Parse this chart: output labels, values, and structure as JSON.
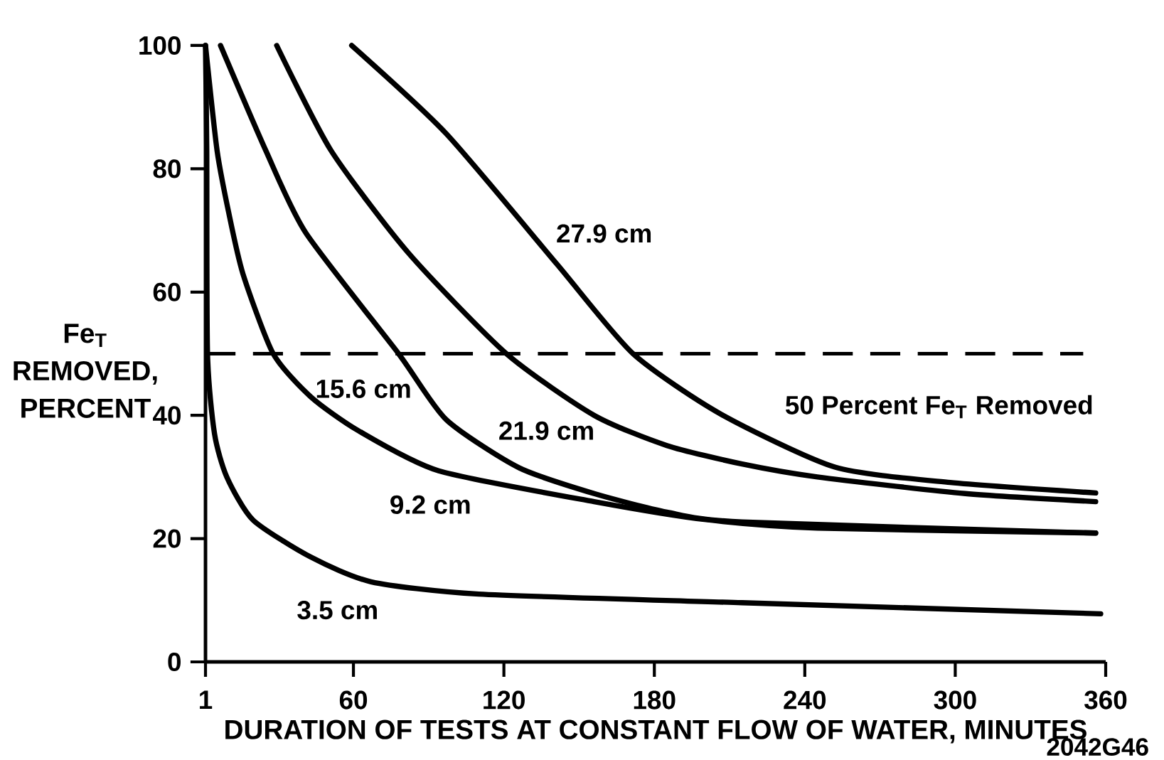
{
  "chart_data": {
    "type": "line",
    "xlabel": "DURATION OF TESTS AT CONSTANT FLOW OF WATER, MINUTES",
    "ylabel": "Fe$_{T}$ REMOVED, PERCENT",
    "xlim": [
      1,
      360
    ],
    "ylim": [
      0,
      100
    ],
    "xticks": [
      1,
      60,
      120,
      180,
      240,
      300,
      360
    ],
    "yticks": [
      0,
      20,
      40,
      60,
      80,
      100
    ],
    "grid": false,
    "marker": "none",
    "line_style": "solid",
    "series": [
      {
        "name": "3.5 cm",
        "color": "#000000",
        "x": [
          1,
          1.5,
          1.8,
          4.6,
          9.5,
          20,
          43,
          67,
          110,
          215,
          358
        ],
        "values": [
          100,
          83,
          50,
          37,
          30,
          23,
          17,
          13,
          11,
          9.6,
          7.8
        ]
      },
      {
        "name": "9.2 cm",
        "color": "#000000",
        "x": [
          1,
          5.6,
          10.2,
          15.9,
          28,
          43,
          62,
          94,
          156,
          200,
          245,
          356
        ],
        "values": [
          100,
          83,
          73,
          63,
          50,
          43,
          37.5,
          31,
          26,
          23.1,
          21.7,
          20.9
        ]
      },
      {
        "name": "15.6 cm",
        "color": "#000000",
        "x": [
          7,
          25,
          41,
          78,
          97,
          126,
          156,
          185,
          215,
          356
        ],
        "values": [
          100,
          83,
          69.6,
          50,
          39.3,
          31.5,
          27.3,
          24.3,
          22.7,
          20.9
        ]
      },
      {
        "name": "21.9 cm",
        "color": "#000000",
        "x": [
          29.4,
          51,
          82,
          121,
          156,
          185,
          215,
          245,
          304,
          356
        ],
        "values": [
          100,
          83,
          66.3,
          50,
          40,
          35.1,
          32.1,
          30,
          27.3,
          26
        ]
      },
      {
        "name": "27.9 cm",
        "color": "#000000",
        "x": [
          59.3,
          97,
          141,
          171.5,
          206.5,
          252,
          298,
          356
        ],
        "values": [
          100,
          85.7,
          64.6,
          50,
          40.2,
          31.6,
          29.1,
          27.4
        ]
      }
    ],
    "ref_lines": [
      {
        "axis": "y",
        "value": 50,
        "label": "50 Percent Fe$_{T}$ Removed",
        "line_style": "dashed",
        "color": "#000000"
      }
    ],
    "annotations": [
      "2042G46"
    ]
  }
}
